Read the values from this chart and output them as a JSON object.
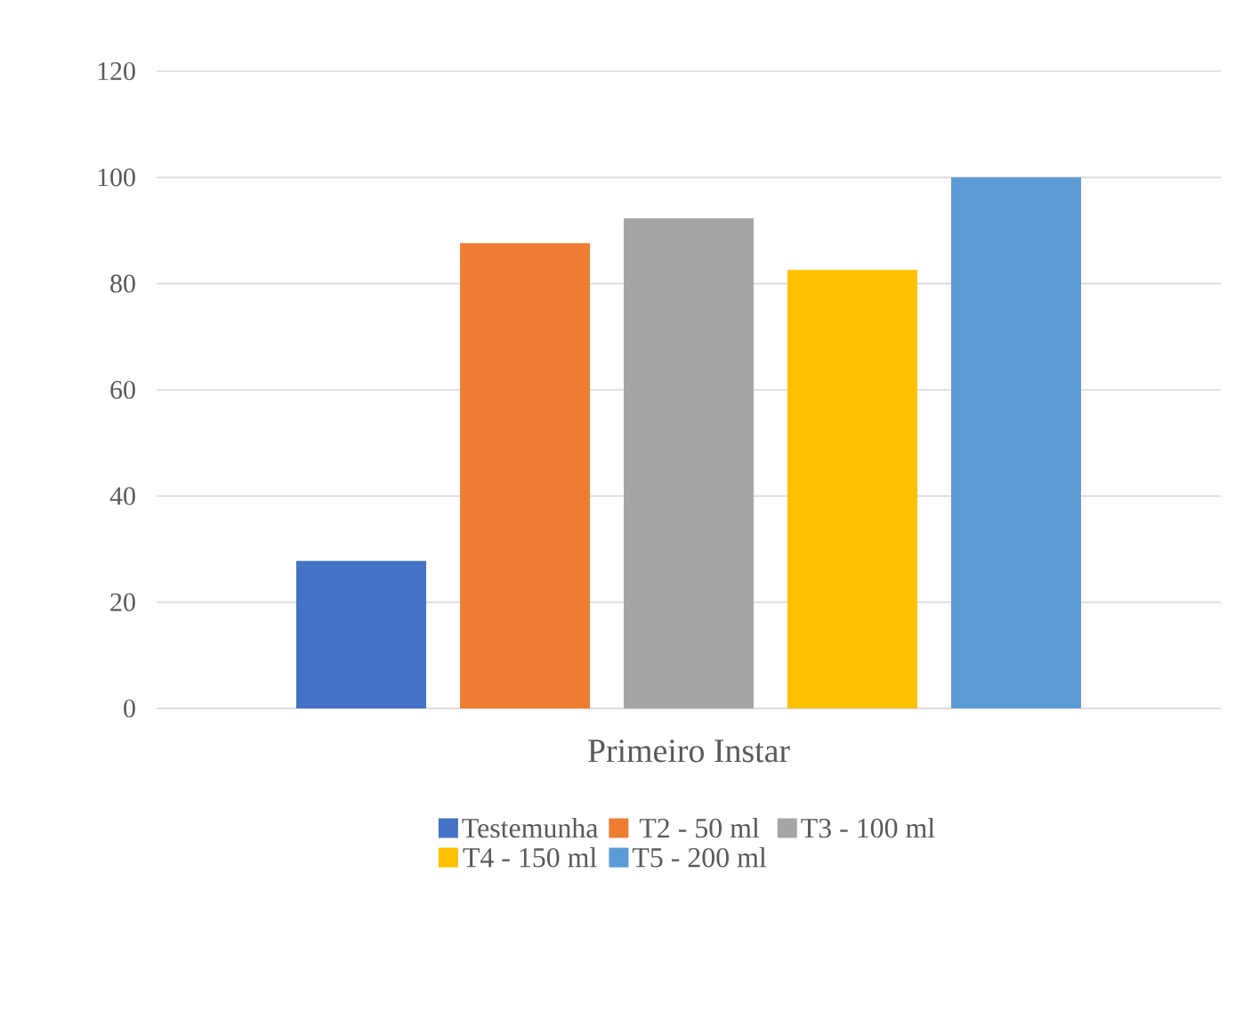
{
  "chart_data": {
    "type": "bar",
    "categories": [
      "Primeiro Instar"
    ],
    "series": [
      {
        "name": "Testemunha",
        "color": "#4472c4",
        "values": [
          27.8
        ]
      },
      {
        "name": "T2 - 50 ml",
        "color": "#ed7d31",
        "values": [
          87.6
        ]
      },
      {
        "name": "T3 - 100 ml",
        "color": "#a5a5a5",
        "values": [
          92.3
        ]
      },
      {
        "name": "T4 - 150 ml",
        "color": "#ffc000",
        "values": [
          82.6
        ]
      },
      {
        "name": "T5 - 200 ml",
        "color": "#5b9bd5",
        "values": [
          100
        ]
      }
    ],
    "ylim": [
      0,
      120
    ],
    "yticks": [
      0,
      20,
      40,
      60,
      80,
      100,
      120
    ],
    "grid": "y",
    "legend": "bottom"
  }
}
